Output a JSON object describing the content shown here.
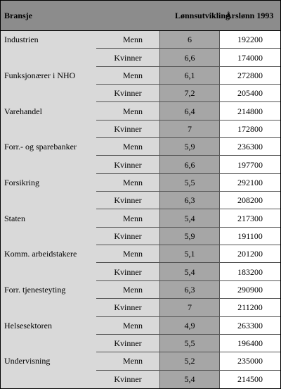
{
  "table": {
    "headers": {
      "bransje": "Bransje",
      "lonnsutvikling": "Lønnsutvikling",
      "arslonn": "Årslønn 1993"
    },
    "rows": [
      {
        "bransje": "Industrien",
        "kjonn": "Menn",
        "lonnsutvikling": "6",
        "arslonn": "192200"
      },
      {
        "bransje": "",
        "kjonn": "Kvinner",
        "lonnsutvikling": "6,6",
        "arslonn": "174000"
      },
      {
        "bransje": "Funksjonærer i NHO",
        "kjonn": "Menn",
        "lonnsutvikling": "6,1",
        "arslonn": "272800"
      },
      {
        "bransje": "",
        "kjonn": "Kvinner",
        "lonnsutvikling": "7,2",
        "arslonn": "205400"
      },
      {
        "bransje": "Varehandel",
        "kjonn": "Menn",
        "lonnsutvikling": "6,4",
        "arslonn": "214800"
      },
      {
        "bransje": "",
        "kjonn": "Kvinner",
        "lonnsutvikling": "7",
        "arslonn": "172800"
      },
      {
        "bransje": "Forr.- og sparebanker",
        "kjonn": "Menn",
        "lonnsutvikling": "5,9",
        "arslonn": "236300"
      },
      {
        "bransje": "",
        "kjonn": "Kvinner",
        "lonnsutvikling": "6,6",
        "arslonn": "197700"
      },
      {
        "bransje": "Forsikring",
        "kjonn": "Menn",
        "lonnsutvikling": "5,5",
        "arslonn": "292100"
      },
      {
        "bransje": "",
        "kjonn": "Kvinner",
        "lonnsutvikling": "6,3",
        "arslonn": "208200"
      },
      {
        "bransje": "Staten",
        "kjonn": "Menn",
        "lonnsutvikling": "5,4",
        "arslonn": "217300"
      },
      {
        "bransje": "",
        "kjonn": "Kvinner",
        "lonnsutvikling": "5,9",
        "arslonn": "191100"
      },
      {
        "bransje": "Komm. arbeidstakere",
        "kjonn": "Menn",
        "lonnsutvikling": "5,1",
        "arslonn": "201200"
      },
      {
        "bransje": "",
        "kjonn": "Kvinner",
        "lonnsutvikling": "5,4",
        "arslonn": "183200"
      },
      {
        "bransje": "Forr. tjenesteyting",
        "kjonn": "Menn",
        "lonnsutvikling": "6,3",
        "arslonn": "290900"
      },
      {
        "bransje": "",
        "kjonn": "Kvinner",
        "lonnsutvikling": "7",
        "arslonn": "211200"
      },
      {
        "bransje": "Helsesektoren",
        "kjonn": "Menn",
        "lonnsutvikling": "4,9",
        "arslonn": "263300"
      },
      {
        "bransje": "",
        "kjonn": "Kvinner",
        "lonnsutvikling": "5,5",
        "arslonn": "196400"
      },
      {
        "bransje": "Undervisning",
        "kjonn": "Menn",
        "lonnsutvikling": "5,2",
        "arslonn": "235000"
      },
      {
        "bransje": "",
        "kjonn": "Kvinner",
        "lonnsutvikling": "5,4",
        "arslonn": "214500"
      }
    ]
  },
  "colors": {
    "header_bg": "#8c8c8c",
    "label_bg": "#d9d9d9",
    "lonn_bg": "#a6a6a6",
    "arslonn_bg": "#ffffff"
  }
}
